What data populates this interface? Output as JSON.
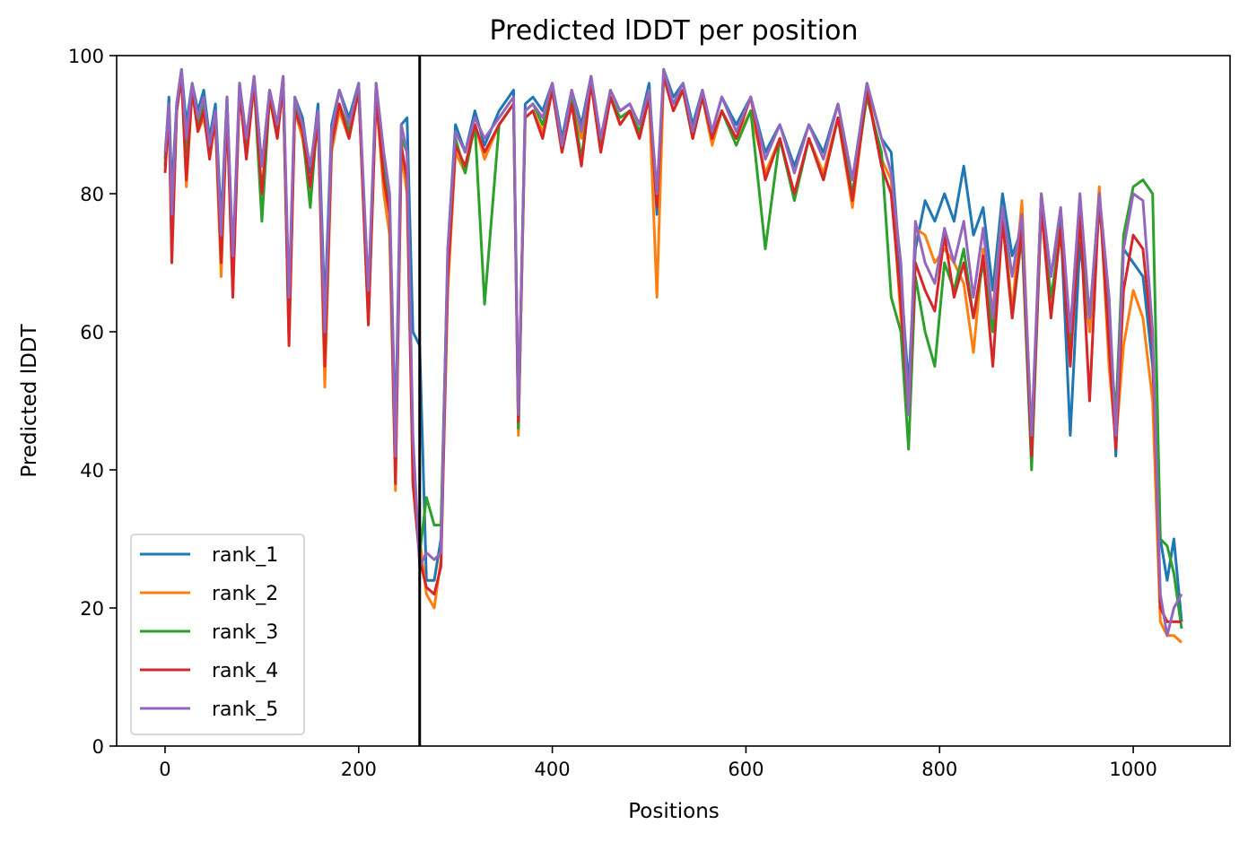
{
  "chart_data": {
    "type": "line",
    "title": "Predicted lDDT per position",
    "xlabel": "Positions",
    "ylabel": "Predicted lDDT",
    "xlim": [
      -50,
      1100
    ],
    "ylim": [
      0,
      100
    ],
    "xticks": [
      0,
      200,
      400,
      600,
      800,
      1000
    ],
    "yticks": [
      0,
      20,
      40,
      60,
      80,
      100
    ],
    "grid": false,
    "legend": "lower-left",
    "vline": {
      "x": 263,
      "color": "#000000"
    },
    "series": [
      {
        "name": "rank_1",
        "color": "#1f77b4",
        "x": [
          0,
          4,
          7,
          12,
          17,
          22,
          28,
          34,
          40,
          46,
          52,
          58,
          64,
          70,
          77,
          84,
          92,
          100,
          108,
          116,
          122,
          128,
          134,
          142,
          150,
          158,
          165,
          172,
          180,
          190,
          200,
          210,
          218,
          226,
          232,
          238,
          244,
          250,
          256,
          263,
          270,
          278,
          285,
          292,
          300,
          310,
          320,
          330,
          345,
          360,
          365,
          372,
          380,
          390,
          400,
          410,
          420,
          430,
          440,
          450,
          460,
          470,
          480,
          490,
          500,
          508,
          515,
          525,
          535,
          545,
          555,
          565,
          575,
          590,
          605,
          620,
          635,
          650,
          665,
          680,
          695,
          710,
          725,
          740,
          750,
          760,
          768,
          775,
          785,
          795,
          805,
          815,
          825,
          835,
          845,
          855,
          865,
          875,
          885,
          895,
          905,
          915,
          925,
          935,
          945,
          955,
          965,
          975,
          982,
          990,
          1000,
          1010,
          1020,
          1028,
          1035,
          1042,
          1050
        ],
        "y": [
          85,
          94,
          80,
          93,
          98,
          90,
          96,
          92,
          95,
          88,
          93,
          76,
          94,
          70,
          96,
          88,
          97,
          84,
          95,
          90,
          97,
          63,
          94,
          91,
          83,
          93,
          63,
          90,
          95,
          91,
          96,
          64,
          96,
          84,
          78,
          45,
          90,
          91,
          60,
          58,
          24,
          24,
          30,
          72,
          90,
          86,
          92,
          87,
          92,
          95,
          46,
          93,
          94,
          92,
          96,
          88,
          95,
          90,
          97,
          88,
          95,
          92,
          93,
          90,
          96,
          77,
          98,
          94,
          96,
          90,
          95,
          89,
          94,
          90,
          94,
          86,
          90,
          84,
          90,
          86,
          93,
          82,
          96,
          88,
          86,
          68,
          52,
          72,
          79,
          76,
          80,
          76,
          84,
          74,
          78,
          66,
          80,
          71,
          75,
          43,
          80,
          68,
          76,
          45,
          73,
          60,
          78,
          65,
          42,
          72,
          70,
          68,
          55,
          30,
          24,
          30,
          18
        ]
      },
      {
        "name": "rank_2",
        "color": "#ff7f0e",
        "x": [
          0,
          4,
          7,
          12,
          17,
          22,
          28,
          34,
          40,
          46,
          52,
          58,
          64,
          70,
          77,
          84,
          92,
          100,
          108,
          116,
          122,
          128,
          134,
          142,
          150,
          158,
          165,
          172,
          180,
          190,
          200,
          210,
          218,
          226,
          232,
          238,
          244,
          250,
          256,
          263,
          270,
          278,
          285,
          292,
          300,
          310,
          320,
          330,
          345,
          360,
          365,
          372,
          380,
          390,
          400,
          410,
          420,
          430,
          440,
          450,
          460,
          470,
          480,
          490,
          500,
          508,
          515,
          525,
          535,
          545,
          555,
          565,
          575,
          590,
          605,
          620,
          635,
          650,
          665,
          680,
          695,
          710,
          725,
          740,
          750,
          760,
          768,
          775,
          785,
          795,
          805,
          815,
          825,
          835,
          845,
          855,
          865,
          875,
          885,
          895,
          905,
          915,
          925,
          935,
          945,
          955,
          965,
          975,
          982,
          990,
          1000,
          1010,
          1020,
          1028,
          1035,
          1042,
          1050
        ],
        "y": [
          84,
          92,
          71,
          92,
          97,
          81,
          95,
          89,
          91,
          86,
          90,
          68,
          92,
          66,
          95,
          86,
          96,
          79,
          94,
          88,
          96,
          58,
          92,
          88,
          80,
          91,
          52,
          86,
          92,
          88,
          95,
          61,
          94,
          80,
          74,
          37,
          86,
          80,
          40,
          30,
          22,
          20,
          27,
          66,
          86,
          83,
          90,
          85,
          90,
          93,
          45,
          91,
          92,
          89,
          95,
          86,
          93,
          88,
          96,
          86,
          94,
          90,
          92,
          88,
          94,
          65,
          97,
          92,
          95,
          88,
          94,
          87,
          92,
          88,
          92,
          83,
          88,
          80,
          88,
          83,
          91,
          78,
          95,
          85,
          82,
          62,
          48,
          75,
          74,
          70,
          72,
          70,
          67,
          57,
          72,
          63,
          78,
          63,
          79,
          44,
          80,
          64,
          75,
          60,
          79,
          60,
          81,
          55,
          44,
          58,
          66,
          62,
          50,
          18,
          16,
          16,
          15
        ]
      },
      {
        "name": "rank_3",
        "color": "#2ca02c",
        "x": [
          0,
          4,
          7,
          12,
          17,
          22,
          28,
          34,
          40,
          46,
          52,
          58,
          64,
          70,
          77,
          84,
          92,
          100,
          108,
          116,
          122,
          128,
          134,
          142,
          150,
          158,
          165,
          172,
          180,
          190,
          200,
          210,
          218,
          226,
          232,
          238,
          244,
          250,
          256,
          263,
          270,
          278,
          285,
          292,
          300,
          310,
          320,
          330,
          345,
          360,
          365,
          372,
          380,
          390,
          400,
          410,
          420,
          430,
          440,
          450,
          460,
          470,
          480,
          490,
          500,
          508,
          515,
          525,
          535,
          545,
          555,
          565,
          575,
          590,
          605,
          620,
          635,
          650,
          665,
          680,
          695,
          710,
          725,
          740,
          750,
          760,
          768,
          775,
          785,
          795,
          805,
          815,
          825,
          835,
          845,
          855,
          865,
          875,
          885,
          895,
          905,
          915,
          925,
          935,
          945,
          955,
          965,
          975,
          982,
          990,
          1000,
          1010,
          1020,
          1028,
          1035,
          1042,
          1050
        ],
        "y": [
          84,
          93,
          74,
          92,
          97,
          86,
          95,
          90,
          93,
          87,
          91,
          72,
          93,
          69,
          95,
          87,
          96,
          76,
          94,
          89,
          96,
          60,
          93,
          89,
          78,
          92,
          58,
          88,
          93,
          89,
          95,
          63,
          95,
          83,
          78,
          41,
          88,
          86,
          40,
          28,
          36,
          32,
          32,
          70,
          88,
          83,
          90,
          64,
          90,
          93,
          46,
          92,
          93,
          90,
          95,
          87,
          94,
          85,
          96,
          87,
          94,
          91,
          92,
          89,
          94,
          80,
          97,
          93,
          95,
          88,
          94,
          88,
          92,
          87,
          92,
          72,
          88,
          79,
          88,
          82,
          91,
          80,
          94,
          86,
          65,
          60,
          43,
          68,
          60,
          55,
          70,
          66,
          72,
          62,
          70,
          60,
          77,
          62,
          74,
          40,
          78,
          65,
          74,
          58,
          76,
          62,
          80,
          60,
          48,
          74,
          81,
          82,
          80,
          30,
          29,
          25,
          17
        ]
      },
      {
        "name": "rank_4",
        "color": "#d62728",
        "x": [
          0,
          4,
          7,
          12,
          17,
          22,
          28,
          34,
          40,
          46,
          52,
          58,
          64,
          70,
          77,
          84,
          92,
          100,
          108,
          116,
          122,
          128,
          134,
          142,
          150,
          158,
          165,
          172,
          180,
          190,
          200,
          210,
          218,
          226,
          232,
          238,
          244,
          250,
          256,
          263,
          270,
          278,
          285,
          292,
          300,
          310,
          320,
          330,
          345,
          360,
          365,
          372,
          380,
          390,
          400,
          410,
          420,
          430,
          440,
          450,
          460,
          470,
          480,
          490,
          500,
          508,
          515,
          525,
          535,
          545,
          555,
          565,
          575,
          590,
          605,
          620,
          635,
          650,
          665,
          680,
          695,
          710,
          725,
          740,
          750,
          760,
          768,
          775,
          785,
          795,
          805,
          815,
          825,
          835,
          845,
          855,
          865,
          875,
          885,
          895,
          905,
          915,
          925,
          935,
          945,
          955,
          965,
          975,
          982,
          990,
          1000,
          1010,
          1020,
          1028,
          1035,
          1042,
          1050
        ],
        "y": [
          83,
          92,
          70,
          92,
          97,
          82,
          95,
          89,
          92,
          85,
          91,
          70,
          92,
          65,
          95,
          85,
          96,
          80,
          94,
          88,
          96,
          58,
          92,
          89,
          81,
          91,
          55,
          87,
          93,
          88,
          95,
          61,
          94,
          82,
          77,
          38,
          87,
          82,
          38,
          27,
          23,
          22,
          26,
          68,
          87,
          84,
          90,
          86,
          90,
          93,
          47,
          91,
          92,
          88,
          95,
          86,
          93,
          84,
          96,
          86,
          94,
          90,
          92,
          88,
          94,
          78,
          97,
          92,
          95,
          88,
          94,
          88,
          92,
          88,
          94,
          82,
          88,
          80,
          88,
          82,
          91,
          79,
          95,
          84,
          80,
          64,
          48,
          70,
          66,
          63,
          74,
          65,
          70,
          62,
          71,
          55,
          76,
          62,
          75,
          42,
          78,
          62,
          75,
          55,
          77,
          50,
          80,
          58,
          43,
          66,
          74,
          72,
          58,
          20,
          18,
          18,
          18
        ]
      },
      {
        "name": "rank_5",
        "color": "#9467bd",
        "x": [
          0,
          4,
          7,
          12,
          17,
          22,
          28,
          34,
          40,
          46,
          52,
          58,
          64,
          70,
          77,
          84,
          92,
          100,
          108,
          116,
          122,
          128,
          134,
          142,
          150,
          158,
          165,
          172,
          180,
          190,
          200,
          210,
          218,
          226,
          232,
          238,
          244,
          250,
          256,
          263,
          270,
          278,
          285,
          292,
          300,
          310,
          320,
          330,
          345,
          360,
          365,
          372,
          380,
          390,
          400,
          410,
          420,
          430,
          440,
          450,
          460,
          470,
          480,
          490,
          500,
          508,
          515,
          525,
          535,
          545,
          555,
          565,
          575,
          590,
          605,
          620,
          635,
          650,
          665,
          680,
          695,
          710,
          725,
          740,
          750,
          760,
          768,
          775,
          785,
          795,
          805,
          815,
          825,
          835,
          845,
          855,
          865,
          875,
          885,
          895,
          905,
          915,
          925,
          935,
          945,
          955,
          965,
          975,
          982,
          990,
          1000,
          1010,
          1020,
          1028,
          1035,
          1042,
          1050
        ],
        "y": [
          86,
          93,
          77,
          93,
          98,
          88,
          96,
          91,
          94,
          87,
          92,
          74,
          94,
          71,
          96,
          88,
          97,
          84,
          95,
          90,
          97,
          65,
          94,
          90,
          84,
          92,
          60,
          89,
          95,
          90,
          96,
          66,
          96,
          86,
          80,
          42,
          90,
          86,
          45,
          26,
          28,
          27,
          28,
          72,
          89,
          86,
          91,
          88,
          91,
          94,
          48,
          92,
          93,
          91,
          96,
          87,
          95,
          89,
          97,
          88,
          95,
          92,
          93,
          90,
          95,
          80,
          98,
          93,
          96,
          89,
          95,
          89,
          94,
          89,
          94,
          85,
          90,
          83,
          90,
          85,
          93,
          82,
          96,
          88,
          83,
          70,
          48,
          76,
          70,
          67,
          75,
          70,
          76,
          65,
          75,
          62,
          78,
          68,
          77,
          45,
          80,
          68,
          78,
          60,
          80,
          62,
          80,
          65,
          45,
          72,
          80,
          79,
          60,
          22,
          16,
          20,
          22
        ]
      }
    ]
  }
}
